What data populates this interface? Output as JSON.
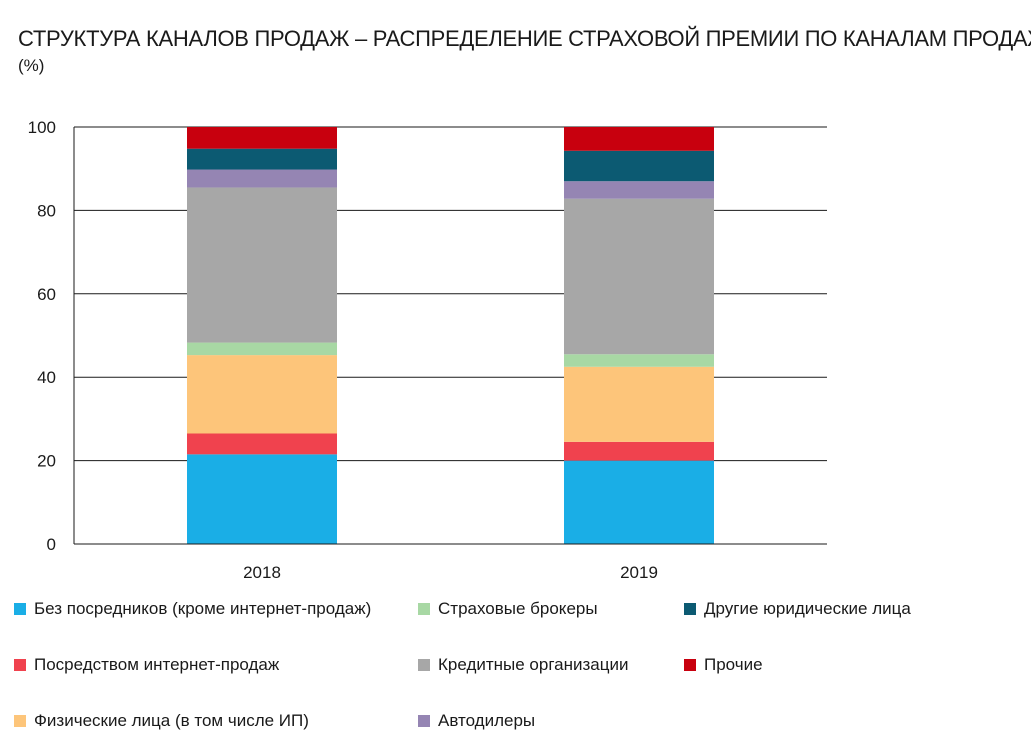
{
  "title": "СТРУКТУРА КАНАЛОВ ПРОДАЖ – РАСПРЕДЕЛЕНИЕ СТРАХОВОЙ ПРЕМИИ ПО КАНАЛАМ ПРОДАЖ",
  "subtitle": "(%)",
  "chart_data": {
    "type": "bar",
    "stacked": true,
    "title": "СТРУКТУРА КАНАЛОВ ПРОДАЖ – РАСПРЕДЕЛЕНИЕ СТРАХОВОЙ ПРЕМИИ ПО КАНАЛАМ ПРОДАЖ",
    "ylabel": "(%)",
    "xlabel": "",
    "categories": [
      "2018",
      "2019"
    ],
    "ylim": [
      0,
      100
    ],
    "yticks": [
      0,
      20,
      40,
      60,
      80,
      100
    ],
    "grid": true,
    "legend_position": "bottom",
    "series": [
      {
        "name": "Без посредников (кроме интернет-продаж)",
        "color": "#1aaee6",
        "values": [
          21.5,
          20.0
        ]
      },
      {
        "name": "Посредством интернет-продаж",
        "color": "#f0424e",
        "values": [
          5.0,
          4.5
        ]
      },
      {
        "name": "Физические лица (в том числе ИП)",
        "color": "#fdc57a",
        "values": [
          18.8,
          18.0
        ]
      },
      {
        "name": "Страховые брокеры",
        "color": "#a8d8a4",
        "values": [
          3.0,
          3.0
        ]
      },
      {
        "name": "Кредитные организации",
        "color": "#a7a7a7",
        "values": [
          37.2,
          37.3
        ]
      },
      {
        "name": "Автодилеры",
        "color": "#9585b3",
        "values": [
          4.3,
          4.2
        ]
      },
      {
        "name": "Другие юридические лица",
        "color": "#0c5a72",
        "values": [
          5.0,
          7.3
        ]
      },
      {
        "name": "Прочие",
        "color": "#c8000e",
        "values": [
          5.2,
          5.7
        ]
      }
    ]
  }
}
